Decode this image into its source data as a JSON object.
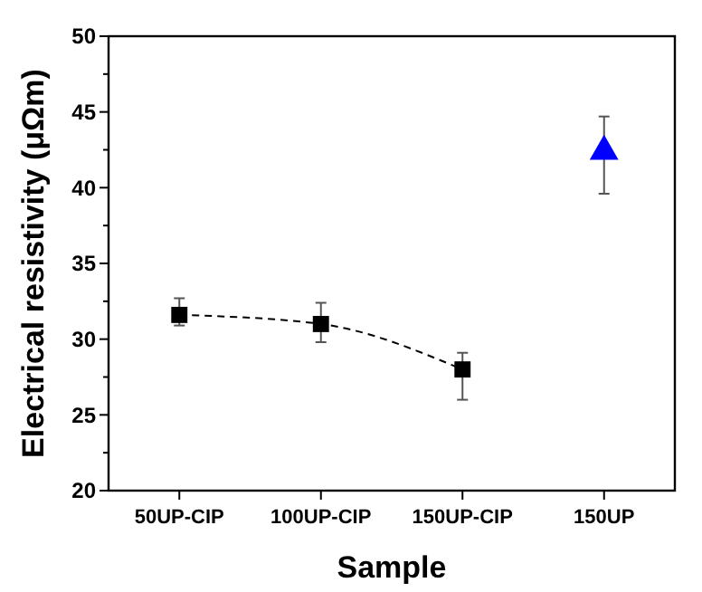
{
  "chart_data": {
    "type": "line",
    "xlabel": "Sample",
    "ylabel": "Electrical resistivity (μΩm)",
    "categories": [
      "50UP-CIP",
      "100UP-CIP",
      "150UP-CIP",
      "150UP"
    ],
    "ylim": [
      20,
      50
    ],
    "yticks": [
      20,
      {
        "value": 22.5,
        "label": null
      },
      25,
      {
        "value": 27.5,
        "label": null
      },
      30,
      {
        "value": 32.5,
        "label": null
      },
      35,
      {
        "value": 37.5,
        "label": null
      },
      40,
      {
        "value": 42.5,
        "label": null
      },
      45,
      {
        "value": 47.5,
        "label": null
      },
      50
    ],
    "grid": false,
    "series": [
      {
        "type": "line",
        "color": "#000000",
        "marker": "square",
        "line_style": "dashed",
        "values": [
          31.6,
          31.0,
          28.0,
          null
        ],
        "errors": [
          [
            30.9,
            32.7
          ],
          [
            29.8,
            32.4
          ],
          [
            26.0,
            29.1
          ],
          null
        ]
      },
      {
        "type": "scatter",
        "color": "#0000ff",
        "marker": "triangle",
        "values": [
          null,
          null,
          null,
          42.4
        ],
        "errors": [
          null,
          null,
          null,
          [
            39.6,
            44.7
          ]
        ]
      }
    ]
  }
}
